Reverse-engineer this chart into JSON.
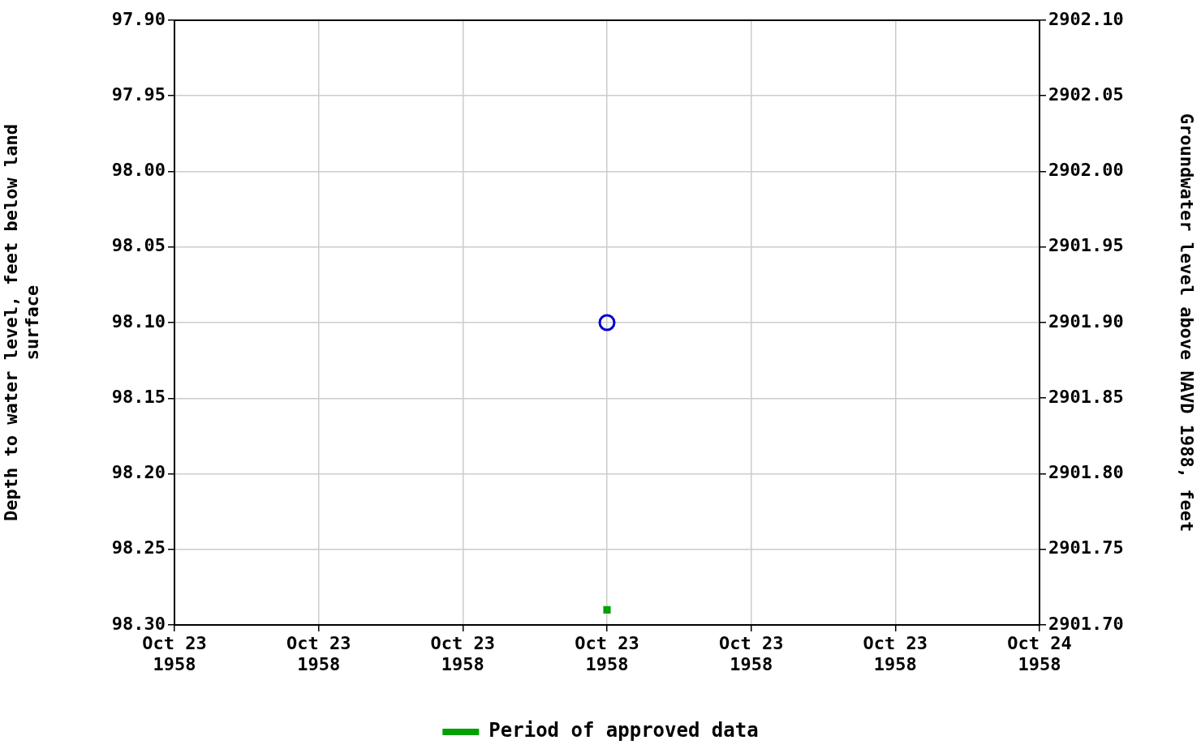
{
  "chart_data": {
    "type": "scatter",
    "ylabel": "Depth to water level, feet below land surface",
    "y2label": "Groundwater level above NAVD 1988, feet",
    "xlim": [
      "1958-10-23T00:00",
      "1958-10-24T00:00"
    ],
    "xticks": [
      {
        "value": "1958-10-23T00:00",
        "label": "Oct 23\n1958"
      },
      {
        "value": "1958-10-23T04:00",
        "label": "Oct 23\n1958"
      },
      {
        "value": "1958-10-23T08:00",
        "label": "Oct 23\n1958"
      },
      {
        "value": "1958-10-23T12:00",
        "label": "Oct 23\n1958"
      },
      {
        "value": "1958-10-23T16:00",
        "label": "Oct 23\n1958"
      },
      {
        "value": "1958-10-23T20:00",
        "label": "Oct 23\n1958"
      },
      {
        "value": "1958-10-24T00:00",
        "label": "Oct 24\n1958"
      }
    ],
    "ylim": [
      98.3,
      97.9
    ],
    "yticks": [
      {
        "value": 97.9,
        "label": "97.90"
      },
      {
        "value": 97.95,
        "label": "97.95"
      },
      {
        "value": 98.0,
        "label": "98.00"
      },
      {
        "value": 98.05,
        "label": "98.05"
      },
      {
        "value": 98.1,
        "label": "98.10"
      },
      {
        "value": 98.15,
        "label": "98.15"
      },
      {
        "value": 98.2,
        "label": "98.20"
      },
      {
        "value": 98.25,
        "label": "98.25"
      },
      {
        "value": 98.3,
        "label": "98.30"
      }
    ],
    "y2lim": [
      2901.7,
      2902.1
    ],
    "y2ticks": [
      {
        "value": 2901.7,
        "label": "2901.70"
      },
      {
        "value": 2901.75,
        "label": "2901.75"
      },
      {
        "value": 2901.8,
        "label": "2901.80"
      },
      {
        "value": 2901.85,
        "label": "2901.85"
      },
      {
        "value": 2901.9,
        "label": "2901.90"
      },
      {
        "value": 2901.95,
        "label": "2901.95"
      },
      {
        "value": 2902.0,
        "label": "2902.00"
      },
      {
        "value": 2902.05,
        "label": "2902.05"
      },
      {
        "value": 2902.1,
        "label": "2902.10"
      }
    ],
    "grid": true,
    "legend": "bottom",
    "series": [
      {
        "color": "#0000cc",
        "marker": "circle",
        "x": [
          "1958-10-23T12:00"
        ],
        "values": [
          98.1
        ]
      },
      {
        "name": "Period of approved data",
        "color": "#00a000",
        "marker": "square",
        "x": [
          "1958-10-23T12:00"
        ],
        "values": [
          98.29
        ]
      }
    ]
  }
}
